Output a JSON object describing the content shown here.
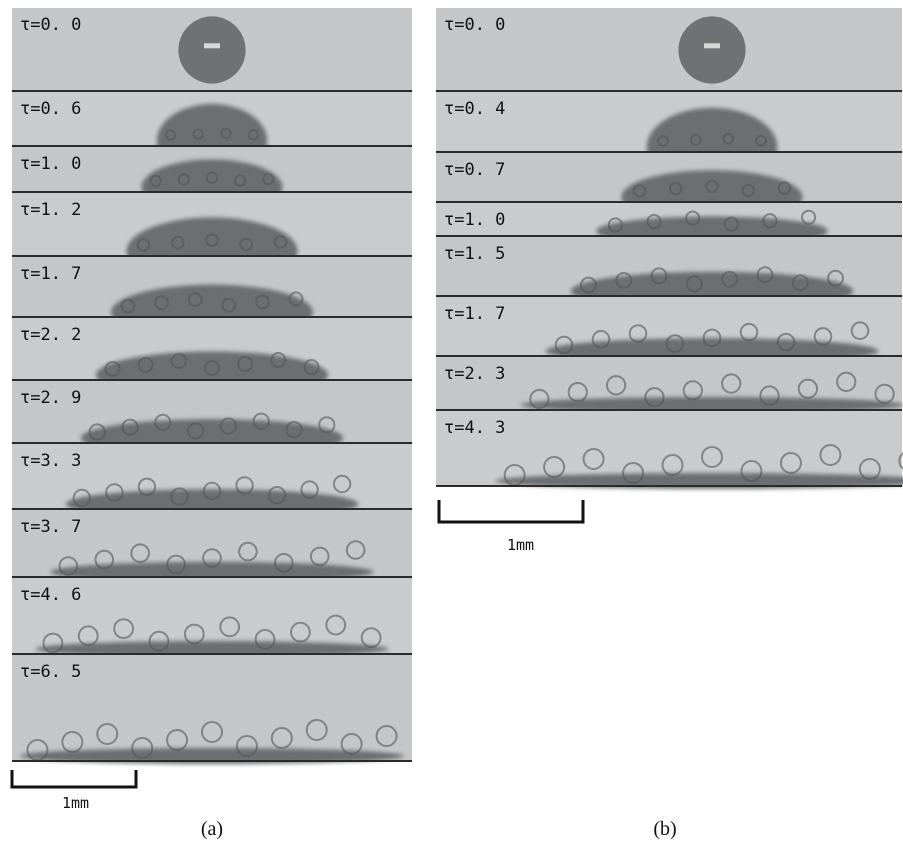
{
  "panels": [
    {
      "caption": "(a)",
      "scale_bar": "1mm",
      "frames": [
        "τ=0. 0",
        "τ=0. 6",
        "τ=1. 0",
        "τ=1. 2",
        "τ=1. 7",
        "τ=2. 2",
        "τ=2. 9",
        "τ=3. 3",
        "τ=3. 7",
        "τ=4. 6",
        "τ=6. 5"
      ]
    },
    {
      "caption": "(b)",
      "scale_bar": "1mm",
      "frames": [
        "τ=0. 0",
        "τ=0. 4",
        "τ=0. 7",
        "τ=1. 0",
        "τ=1. 5",
        "τ=1. 7",
        "τ=2. 3",
        "τ=4. 3"
      ]
    }
  ]
}
